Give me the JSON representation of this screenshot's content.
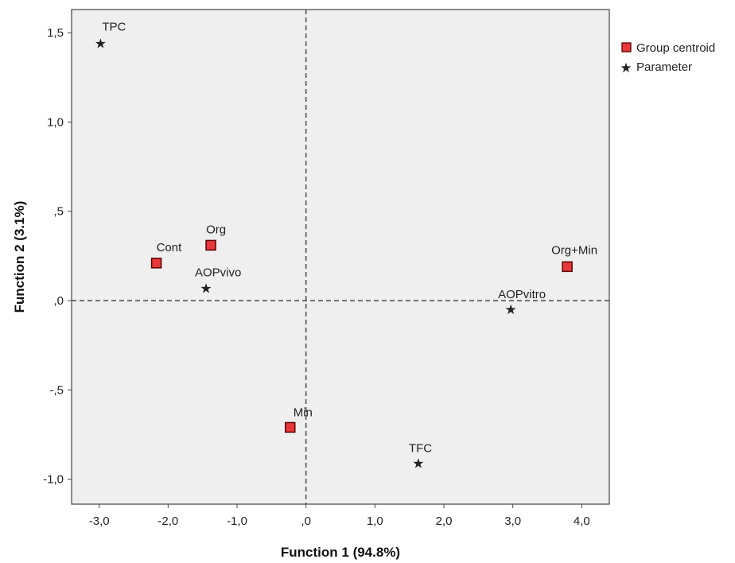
{
  "chart_data": {
    "type": "scatter",
    "xlabel": "Function 1 (94.8%)",
    "ylabel": "Function 2 (3.1%)",
    "xlim": [
      -3.4,
      4.4
    ],
    "ylim": [
      -1.14,
      1.63
    ],
    "x_ticks": [
      {
        "value": -3.0,
        "label": "-3,0"
      },
      {
        "value": -2.0,
        "label": "-2,0"
      },
      {
        "value": -1.0,
        "label": "-1,0"
      },
      {
        "value": 0.0,
        "label": ",0"
      },
      {
        "value": 1.0,
        "label": "1,0"
      },
      {
        "value": 2.0,
        "label": "2,0"
      },
      {
        "value": 3.0,
        "label": "3,0"
      },
      {
        "value": 4.0,
        "label": "4,0"
      }
    ],
    "y_ticks": [
      {
        "value": 1.5,
        "label": "1,5"
      },
      {
        "value": 1.0,
        "label": "1,0"
      },
      {
        "value": 0.5,
        "label": ",5"
      },
      {
        "value": 0.0,
        "label": ",0"
      },
      {
        "value": -0.5,
        "label": "-,5"
      },
      {
        "value": -1.0,
        "label": "-1,0"
      }
    ],
    "reference_lines": {
      "x": 0,
      "y": 0,
      "style": "dashed"
    },
    "grid": false,
    "legend_position": "top-right, outside plot",
    "series": [
      {
        "name": "Group centroid",
        "marker": "square",
        "color": "#e8373a",
        "points": [
          {
            "label": "Org",
            "x": -1.38,
            "y": 0.31
          },
          {
            "label": "Cont",
            "x": -2.17,
            "y": 0.21
          },
          {
            "label": "Org+Min",
            "x": 3.79,
            "y": 0.19
          },
          {
            "label": "Min",
            "x": -0.23,
            "y": -0.71
          }
        ]
      },
      {
        "name": "Parameter",
        "marker": "star",
        "color": "#222222",
        "points": [
          {
            "label": "TPC",
            "x": -2.98,
            "y": 1.44
          },
          {
            "label": "AOPvivo",
            "x": -1.45,
            "y": 0.07
          },
          {
            "label": "AOPvitro",
            "x": 2.97,
            "y": -0.05
          },
          {
            "label": "TFC",
            "x": 1.63,
            "y": -0.91
          }
        ]
      }
    ]
  },
  "colors": {
    "plot_background": "#efefef",
    "centroid_fill": "#e8373a",
    "centroid_stroke": "#5a0000"
  }
}
